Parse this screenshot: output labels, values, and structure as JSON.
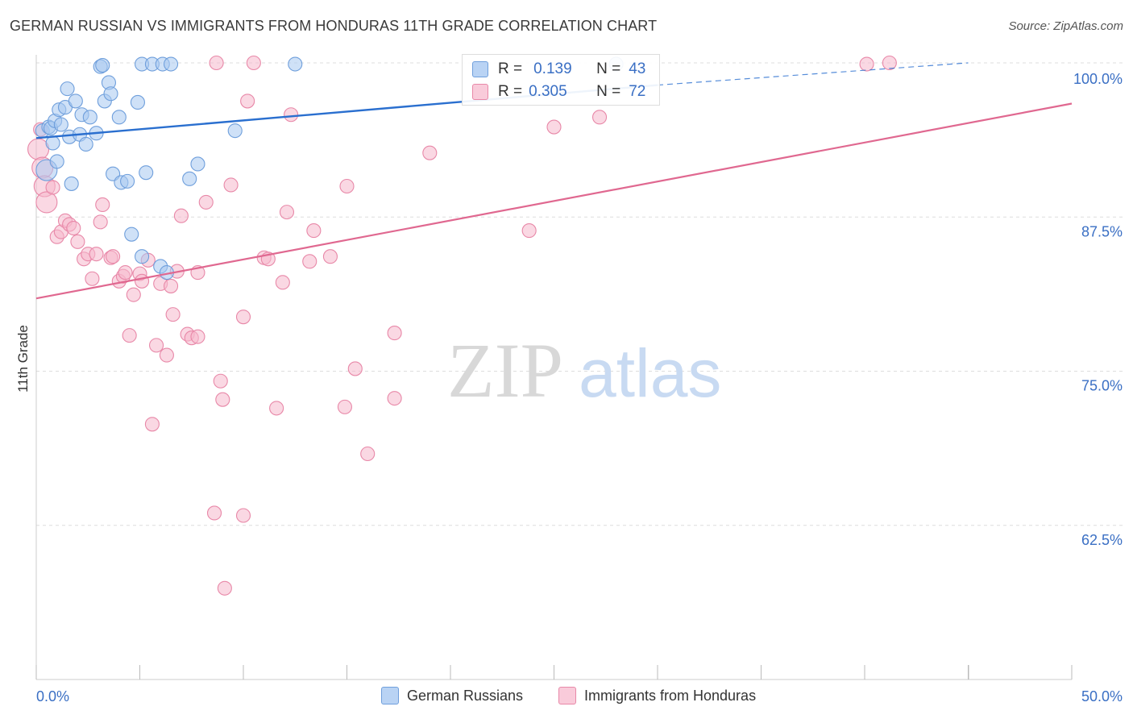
{
  "header": {
    "title": "GERMAN RUSSIAN VS IMMIGRANTS FROM HONDURAS 11TH GRADE CORRELATION CHART",
    "source": "Source: ZipAtlas.com"
  },
  "legend": {
    "rows": [
      {
        "r_label": "R =",
        "r_value": "0.139",
        "n_label": "N =",
        "n_value": "43"
      },
      {
        "r_label": "R =",
        "r_value": "0.305",
        "n_label": "N =",
        "n_value": "72"
      }
    ]
  },
  "colors": {
    "blue_fill": "#a8c8f0",
    "blue_stroke": "#6f9fdc",
    "blue_line": "#2a6fcf",
    "pink_fill": "#f6b8cc",
    "pink_stroke": "#e888a8",
    "pink_line": "#e06890",
    "grid": "#dddddd",
    "axis_text": "#3a6fc4"
  },
  "watermark": {
    "zip": "ZIP",
    "atlas": "atlas"
  },
  "chart_data": {
    "type": "scatter",
    "title": "GERMAN RUSSIAN VS IMMIGRANTS FROM HONDURAS 11TH GRADE CORRELATION CHART",
    "xlabel": "",
    "ylabel": "11th Grade",
    "xlim": [
      0,
      50
    ],
    "ylim": [
      50,
      100
    ],
    "x_tick_labels": [
      "0.0%",
      "50.0%"
    ],
    "y_ticks": [
      62.5,
      75.0,
      87.5,
      100.0
    ],
    "y_tick_labels": [
      "62.5%",
      "75.0%",
      "87.5%",
      "100.0%"
    ],
    "grid": true,
    "legend_position": "top-center",
    "series": [
      {
        "name": "German Russians",
        "r": 0.139,
        "n": 43,
        "trend": {
          "x": [
            0,
            30
          ],
          "y": [
            93.9,
            98.2
          ],
          "dashed_to": [
            45,
            100
          ]
        },
        "points": [
          [
            0.3,
            94.5
          ],
          [
            0.5,
            91.3
          ],
          [
            0.6,
            94.8
          ],
          [
            0.7,
            94.7
          ],
          [
            0.8,
            93.5
          ],
          [
            0.9,
            95.3
          ],
          [
            1.0,
            92.0
          ],
          [
            1.1,
            96.2
          ],
          [
            1.2,
            95.0
          ],
          [
            1.4,
            96.4
          ],
          [
            1.5,
            97.9
          ],
          [
            1.6,
            94.0
          ],
          [
            1.7,
            90.2
          ],
          [
            1.9,
            96.9
          ],
          [
            2.1,
            94.2
          ],
          [
            2.2,
            95.8
          ],
          [
            2.4,
            93.4
          ],
          [
            2.6,
            95.6
          ],
          [
            2.9,
            94.3
          ],
          [
            3.1,
            99.7
          ],
          [
            3.2,
            99.8
          ],
          [
            3.3,
            96.9
          ],
          [
            3.5,
            98.4
          ],
          [
            3.6,
            97.5
          ],
          [
            3.7,
            91.0
          ],
          [
            4.0,
            95.6
          ],
          [
            4.1,
            90.3
          ],
          [
            4.4,
            90.4
          ],
          [
            4.6,
            86.1
          ],
          [
            4.9,
            96.8
          ],
          [
            5.1,
            84.3
          ],
          [
            5.1,
            99.9
          ],
          [
            5.3,
            91.1
          ],
          [
            5.6,
            99.9
          ],
          [
            6.0,
            83.5
          ],
          [
            6.1,
            99.9
          ],
          [
            6.3,
            83.0
          ],
          [
            6.5,
            99.9
          ],
          [
            7.4,
            90.6
          ],
          [
            7.8,
            91.8
          ],
          [
            9.6,
            94.5
          ],
          [
            12.5,
            99.9
          ],
          [
            28.0,
            99.9
          ]
        ]
      },
      {
        "name": "Immigrants from Honduras",
        "r": 0.305,
        "n": 72,
        "trend": {
          "x": [
            0,
            50
          ],
          "y": [
            80.9,
            96.7
          ]
        },
        "points": [
          [
            0.1,
            93.0
          ],
          [
            0.3,
            91.5
          ],
          [
            0.4,
            90.0
          ],
          [
            0.5,
            88.7
          ],
          [
            0.8,
            89.9
          ],
          [
            1.0,
            85.9
          ],
          [
            1.2,
            86.3
          ],
          [
            1.4,
            87.2
          ],
          [
            1.6,
            86.9
          ],
          [
            1.8,
            86.6
          ],
          [
            2.0,
            85.5
          ],
          [
            2.3,
            84.1
          ],
          [
            2.5,
            84.5
          ],
          [
            2.7,
            82.5
          ],
          [
            2.9,
            84.5
          ],
          [
            3.1,
            87.1
          ],
          [
            3.2,
            88.5
          ],
          [
            3.6,
            84.2
          ],
          [
            3.7,
            84.3
          ],
          [
            4.0,
            82.3
          ],
          [
            4.2,
            82.7
          ],
          [
            4.3,
            83.0
          ],
          [
            4.5,
            77.9
          ],
          [
            4.7,
            81.2
          ],
          [
            5.0,
            82.9
          ],
          [
            5.1,
            82.3
          ],
          [
            5.4,
            84.0
          ],
          [
            5.6,
            70.7
          ],
          [
            5.8,
            77.1
          ],
          [
            6.0,
            82.1
          ],
          [
            6.3,
            76.3
          ],
          [
            6.5,
            81.9
          ],
          [
            6.6,
            79.6
          ],
          [
            6.8,
            83.1
          ],
          [
            7.0,
            87.6
          ],
          [
            7.3,
            78.0
          ],
          [
            7.5,
            77.7
          ],
          [
            7.8,
            77.8
          ],
          [
            7.8,
            83.0
          ],
          [
            8.2,
            88.7
          ],
          [
            8.6,
            63.5
          ],
          [
            8.7,
            100.0
          ],
          [
            8.9,
            74.2
          ],
          [
            9.0,
            72.7
          ],
          [
            9.4,
            90.1
          ],
          [
            10.0,
            63.3
          ],
          [
            10.0,
            79.4
          ],
          [
            10.2,
            96.9
          ],
          [
            10.5,
            100.0
          ],
          [
            11.0,
            84.2
          ],
          [
            11.2,
            84.1
          ],
          [
            11.6,
            72.0
          ],
          [
            11.9,
            82.2
          ],
          [
            12.1,
            87.9
          ],
          [
            12.3,
            95.8
          ],
          [
            13.2,
            83.9
          ],
          [
            13.4,
            86.4
          ],
          [
            14.2,
            84.3
          ],
          [
            14.9,
            72.1
          ],
          [
            15.0,
            90.0
          ],
          [
            15.4,
            75.2
          ],
          [
            16.0,
            68.3
          ],
          [
            17.3,
            72.8
          ],
          [
            17.3,
            78.1
          ],
          [
            19.0,
            92.7
          ],
          [
            23.8,
            86.4
          ],
          [
            25.0,
            94.8
          ],
          [
            27.2,
            95.6
          ],
          [
            40.1,
            99.9
          ],
          [
            41.2,
            100.0
          ],
          [
            9.1,
            57.4
          ],
          [
            0.2,
            94.6
          ]
        ]
      }
    ]
  },
  "bottom_legend": {
    "items": [
      {
        "label": "German Russians"
      },
      {
        "label": "Immigrants from Honduras"
      }
    ]
  }
}
